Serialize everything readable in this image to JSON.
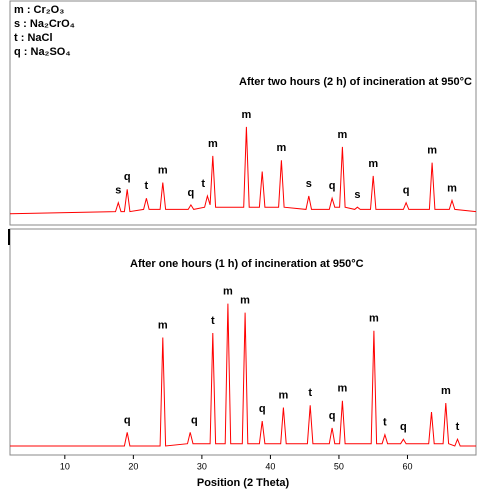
{
  "chart_data": [
    {
      "type": "line",
      "title": "After two hours (2 h) of incineration at 950°C",
      "legend_notes": [
        "m : Cr₂O₃",
        "s : Na₂CrO₄",
        "t : NaCl",
        "q : Na₂SO₄"
      ],
      "color": "#ff0000",
      "xlim": [
        2,
        70
      ],
      "ylim": [
        0,
        100
      ],
      "x": [
        2,
        17.4,
        17.8,
        18.2,
        18.7,
        19.1,
        19.5,
        21.5,
        21.9,
        22.3,
        23.9,
        24.3,
        24.7,
        28.0,
        28.4,
        28.8,
        30.4,
        30.8,
        31.2,
        31.6,
        32.0,
        36.1,
        36.5,
        36.9,
        38.4,
        38.8,
        39.2,
        41.2,
        41.6,
        42.0,
        45.2,
        45.6,
        46.0,
        48.6,
        49.0,
        49.4,
        50.1,
        50.5,
        50.9,
        52.3,
        52.7,
        53.1,
        54.6,
        55.0,
        55.4,
        59.4,
        59.8,
        60.2,
        63.2,
        63.6,
        64.0,
        66.1,
        66.5,
        66.9,
        70
      ],
      "values": [
        5,
        6,
        10,
        6,
        6,
        16,
        6,
        7,
        12,
        7,
        7,
        19,
        7,
        7,
        9,
        7,
        8,
        13,
        9,
        31,
        8,
        8,
        44,
        8,
        8,
        24,
        8,
        8,
        29,
        8,
        7,
        13,
        7,
        7,
        12,
        8,
        8,
        35,
        8,
        7,
        8,
        7,
        7,
        22,
        7,
        7,
        10,
        7,
        7,
        28,
        7,
        7,
        11,
        7,
        6
      ],
      "annotations": [
        {
          "text": "s",
          "x": 17.8,
          "y": 10
        },
        {
          "text": "q",
          "x": 19.1,
          "y": 16
        },
        {
          "text": "t",
          "x": 21.9,
          "y": 12
        },
        {
          "text": "m",
          "x": 24.3,
          "y": 19
        },
        {
          "text": "q",
          "x": 28.4,
          "y": 9
        },
        {
          "text": "t",
          "x": 30.2,
          "y": 13
        },
        {
          "text": "m",
          "x": 31.6,
          "y": 31
        },
        {
          "text": "m",
          "x": 36.5,
          "y": 44
        },
        {
          "text": "m",
          "x": 41.6,
          "y": 29
        },
        {
          "text": "s",
          "x": 45.6,
          "y": 13
        },
        {
          "text": "q",
          "x": 49.0,
          "y": 12
        },
        {
          "text": "m",
          "x": 50.5,
          "y": 35
        },
        {
          "text": "s",
          "x": 52.7,
          "y": 8
        },
        {
          "text": "m",
          "x": 55.0,
          "y": 22
        },
        {
          "text": "q",
          "x": 59.8,
          "y": 10
        },
        {
          "text": "m",
          "x": 63.6,
          "y": 28
        },
        {
          "text": "m",
          "x": 66.5,
          "y": 11
        }
      ]
    },
    {
      "type": "line",
      "title": "After one hours (1 h) of incineration at  950°C",
      "xlabel": "Position (2 Theta)",
      "color": "#ff0000",
      "xlim": [
        2,
        70
      ],
      "ylim": [
        0,
        100
      ],
      "xticks": [
        10,
        20,
        30,
        40,
        50,
        60
      ],
      "x": [
        2,
        18.7,
        19.1,
        19.5,
        23.9,
        24.3,
        24.7,
        27.9,
        28.3,
        28.7,
        31.2,
        31.6,
        32.0,
        33.4,
        33.8,
        34.2,
        35.9,
        36.3,
        36.7,
        38.4,
        38.8,
        39.2,
        41.5,
        41.9,
        42.3,
        45.4,
        45.8,
        46.2,
        48.6,
        49.0,
        49.4,
        50.1,
        50.5,
        50.9,
        54.7,
        55.1,
        55.5,
        56.3,
        56.7,
        57.1,
        59.0,
        59.4,
        59.8,
        63.1,
        63.5,
        63.9,
        65.2,
        65.6,
        66.0,
        66.9,
        67.3,
        67.7,
        70
      ],
      "values": [
        4,
        4,
        10,
        4,
        4,
        52,
        4,
        5,
        10,
        5,
        5,
        54,
        5,
        5,
        67,
        5,
        5,
        63,
        5,
        5,
        15,
        5,
        5,
        21,
        5,
        5,
        22,
        5,
        5,
        12,
        5,
        5,
        24,
        5,
        5,
        55,
        5,
        5,
        9,
        5,
        5,
        7,
        5,
        5,
        19,
        5,
        5,
        23,
        5,
        4,
        7,
        4,
        4
      ],
      "annotations": [
        {
          "text": "q",
          "x": 19.1,
          "y": 10
        },
        {
          "text": "m",
          "x": 24.3,
          "y": 52
        },
        {
          "text": "q",
          "x": 28.9,
          "y": 10
        },
        {
          "text": "t",
          "x": 31.6,
          "y": 54
        },
        {
          "text": "m",
          "x": 33.8,
          "y": 67
        },
        {
          "text": "m",
          "x": 36.3,
          "y": 63
        },
        {
          "text": "q",
          "x": 38.8,
          "y": 15
        },
        {
          "text": "m",
          "x": 41.9,
          "y": 21
        },
        {
          "text": "t",
          "x": 45.8,
          "y": 22
        },
        {
          "text": "q",
          "x": 49.0,
          "y": 12
        },
        {
          "text": "m",
          "x": 50.5,
          "y": 24
        },
        {
          "text": "m",
          "x": 55.1,
          "y": 55
        },
        {
          "text": "t",
          "x": 56.7,
          "y": 9
        },
        {
          "text": "q",
          "x": 59.4,
          "y": 7
        },
        {
          "text": "m",
          "x": 65.6,
          "y": 23
        },
        {
          "text": "t",
          "x": 67.3,
          "y": 7
        }
      ]
    }
  ]
}
